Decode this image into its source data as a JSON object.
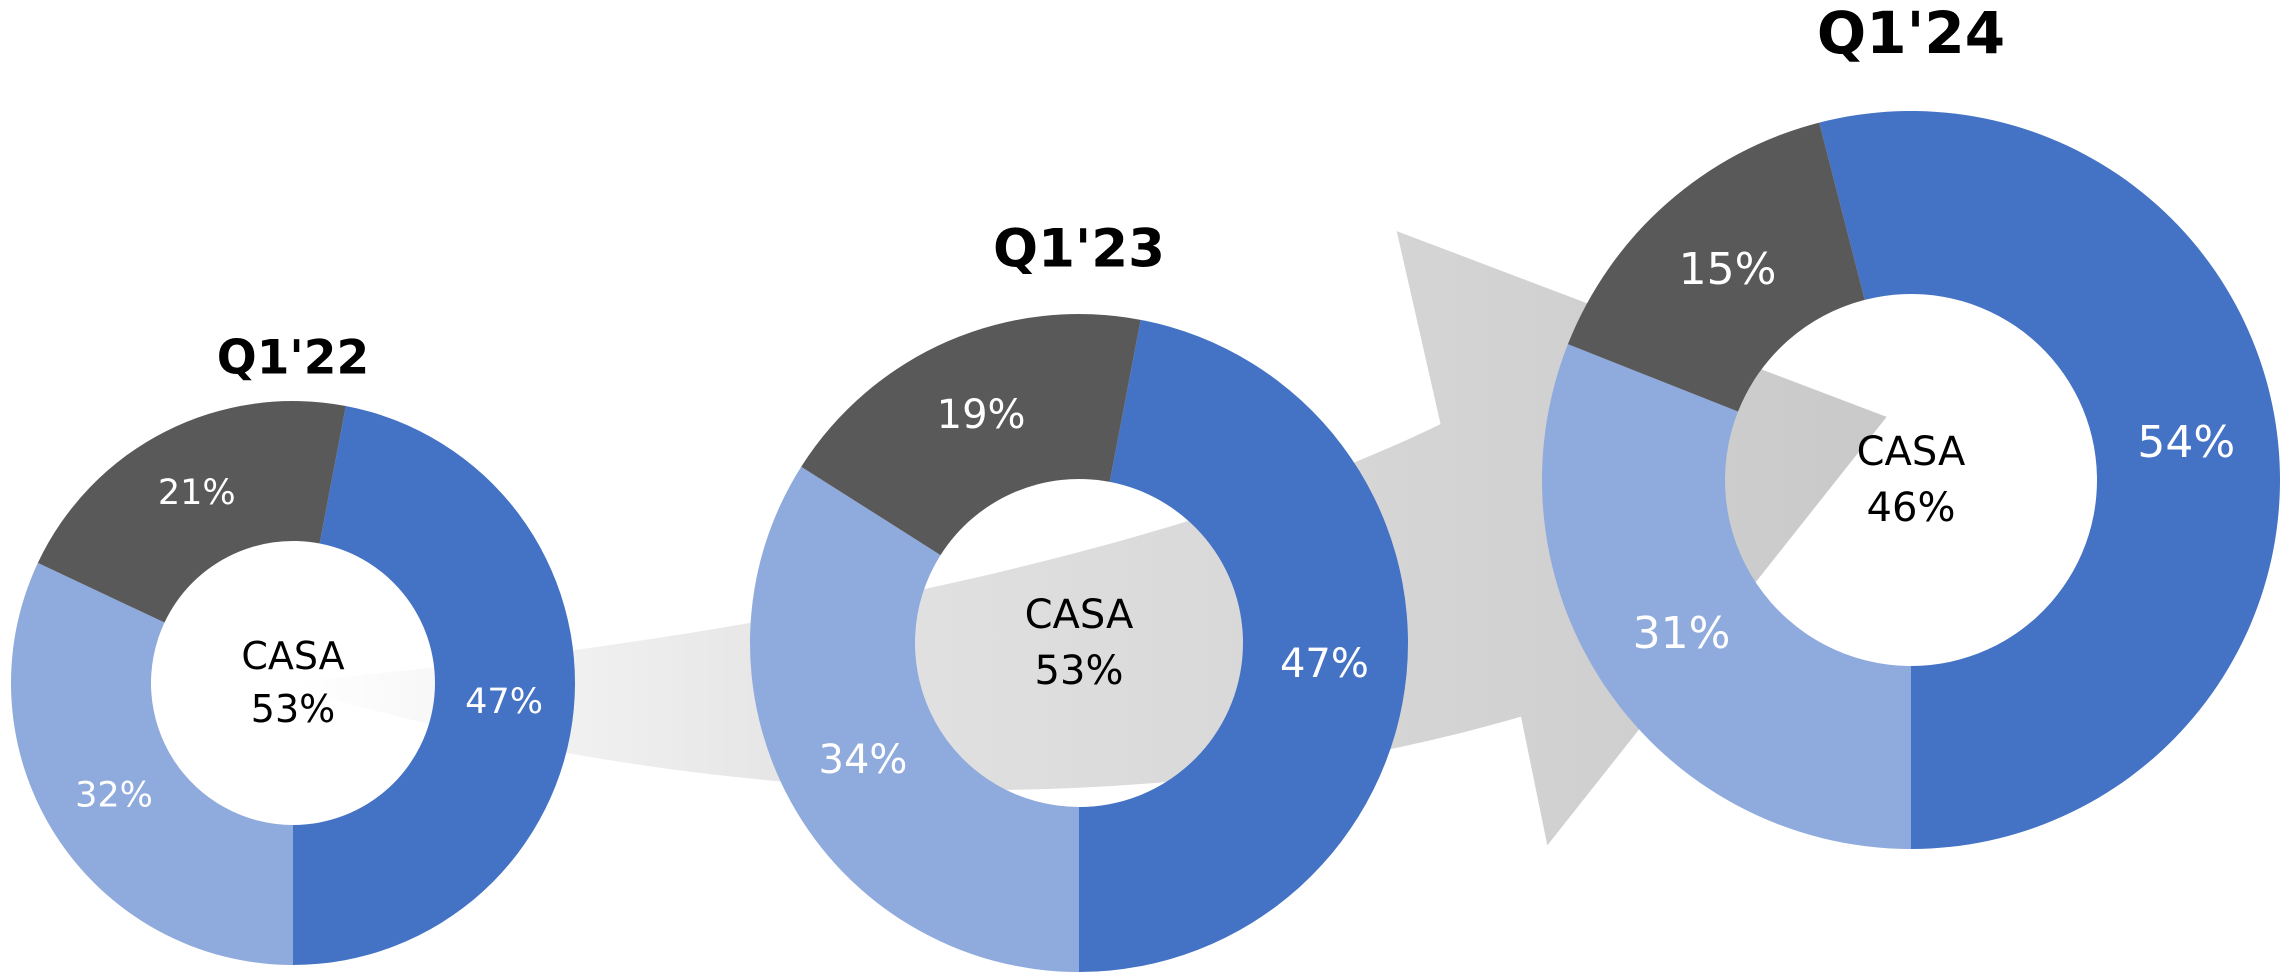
{
  "chart_data": [
    {
      "type": "pie",
      "title": "Q1'22",
      "values": [
        47,
        32,
        21
      ],
      "value_labels": [
        "47%",
        "32%",
        "21%"
      ],
      "colors": [
        "#4472c4",
        "#8faadc",
        "#595959"
      ],
      "center_label": "CASA",
      "center_value": 53,
      "center_value_label": "53%"
    },
    {
      "type": "pie",
      "title": "Q1'23",
      "values": [
        47,
        34,
        19
      ],
      "value_labels": [
        "47%",
        "34%",
        "19%"
      ],
      "colors": [
        "#4472c4",
        "#8faadc",
        "#595959"
      ],
      "center_label": "CASA",
      "center_value": 53,
      "center_value_label": "53%"
    },
    {
      "type": "pie",
      "title": "Q1'24",
      "values": [
        54,
        31,
        15
      ],
      "value_labels": [
        "54%",
        "31%",
        "15%"
      ],
      "colors": [
        "#4472c4",
        "#8faadc",
        "#595959"
      ],
      "center_label": "CASA",
      "center_value": 46,
      "center_value_label": "46%"
    }
  ]
}
